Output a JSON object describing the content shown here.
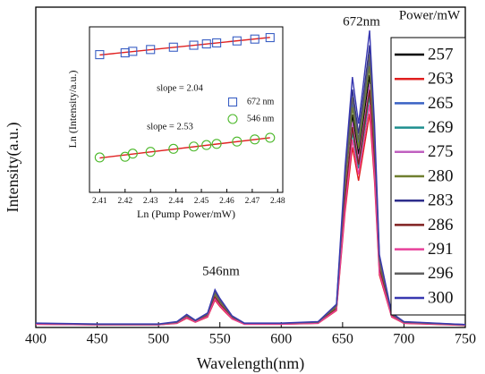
{
  "chart_data": [
    {
      "type": "line",
      "x_label": "Wavelength(nm)",
      "y_label": "Intensity(a.u.)",
      "legend_title": "Power/mW",
      "annotations": [
        "672nm",
        "546nm"
      ],
      "xlim": [
        400,
        750
      ],
      "xticks": [
        400,
        450,
        500,
        550,
        600,
        650,
        700,
        750
      ],
      "ylim": [
        0,
        110
      ],
      "x": [
        400,
        450,
        500,
        515,
        523,
        530,
        540,
        546,
        550,
        555,
        560,
        570,
        600,
        630,
        645,
        652,
        658,
        663,
        667,
        672,
        676,
        680,
        690,
        700,
        750
      ],
      "series": [
        {
          "name": "257",
          "color": "#000000",
          "values": [
            1.3,
            1.0,
            1.0,
            1.7,
            3.8,
            2.1,
            4.3,
            11.1,
            8.5,
            6.0,
            3.4,
            1.3,
            1.3,
            1.7,
            6.8,
            46.8,
            73.1,
            59.5,
            71.4,
            86.7,
            59.5,
            21.3,
            4.3,
            1.7,
            0.9
          ]
        },
        {
          "name": "263",
          "color": "#e02020",
          "values": [
            1.1,
            0.9,
            0.9,
            1.4,
            3.2,
            1.8,
            3.6,
            9.4,
            7.2,
            5.0,
            2.9,
            1.1,
            1.1,
            1.4,
            5.8,
            39.6,
            61.9,
            50.4,
            60.5,
            73.4,
            50.4,
            18.0,
            3.6,
            1.4,
            0.7
          ]
        },
        {
          "name": "265",
          "color": "#3a62c4",
          "values": [
            1.4,
            1.1,
            1.1,
            1.8,
            4.1,
            2.3,
            4.5,
            11.7,
            9.0,
            6.3,
            3.6,
            1.4,
            1.4,
            1.8,
            7.2,
            49.5,
            77.4,
            63.0,
            75.6,
            91.8,
            63.0,
            22.5,
            4.5,
            1.8,
            0.9
          ]
        },
        {
          "name": "269",
          "color": "#1f8f8f",
          "values": [
            1.2,
            0.9,
            0.9,
            1.6,
            3.5,
            2.0,
            3.9,
            10.1,
            7.8,
            5.5,
            3.1,
            1.2,
            1.2,
            1.6,
            6.2,
            42.9,
            67.1,
            54.6,
            65.5,
            79.6,
            54.6,
            19.5,
            3.9,
            1.6,
            0.8
          ]
        },
        {
          "name": "275",
          "color": "#c060c0",
          "values": [
            1.2,
            1.0,
            1.0,
            1.6,
            3.7,
            2.1,
            4.1,
            10.7,
            8.2,
            5.7,
            3.3,
            1.2,
            1.2,
            1.6,
            6.6,
            45.1,
            70.5,
            57.4,
            68.9,
            83.6,
            57.4,
            20.5,
            4.1,
            1.6,
            0.8
          ]
        },
        {
          "name": "280",
          "color": "#6f7f2f",
          "values": [
            1.3,
            1.1,
            1.1,
            1.8,
            4.0,
            2.2,
            4.4,
            11.4,
            8.8,
            6.2,
            3.5,
            1.3,
            1.3,
            1.8,
            7.0,
            48.4,
            75.7,
            61.6,
            73.9,
            89.8,
            61.6,
            22.0,
            4.4,
            1.8,
            0.9
          ]
        },
        {
          "name": "283",
          "color": "#2e2e8c",
          "values": [
            1.4,
            1.1,
            1.1,
            1.9,
            4.3,
            2.4,
            4.8,
            12.4,
            9.5,
            6.7,
            3.8,
            1.4,
            1.4,
            1.9,
            7.6,
            52.3,
            81.7,
            66.5,
            79.8,
            96.9,
            66.5,
            23.8,
            4.8,
            1.9,
            1.0
          ]
        },
        {
          "name": "286",
          "color": "#802020",
          "values": [
            1.2,
            1.0,
            1.0,
            1.6,
            3.6,
            2.0,
            4.0,
            10.4,
            8.0,
            5.6,
            3.2,
            1.2,
            1.2,
            1.6,
            6.4,
            44.0,
            68.8,
            56.0,
            67.2,
            81.6,
            56.0,
            20.0,
            4.0,
            1.6,
            0.8
          ]
        },
        {
          "name": "291",
          "color": "#e8409a",
          "values": [
            1.1,
            0.9,
            0.9,
            1.5,
            3.4,
            1.9,
            3.8,
            9.8,
            7.5,
            5.3,
            3.0,
            1.1,
            1.1,
            1.5,
            6.0,
            41.3,
            64.5,
            52.5,
            63.0,
            76.5,
            52.5,
            18.8,
            3.8,
            1.5,
            0.8
          ]
        },
        {
          "name": "296",
          "color": "#606060",
          "values": [
            1.4,
            1.1,
            1.1,
            1.8,
            4.1,
            2.3,
            4.6,
            12.0,
            9.2,
            6.4,
            3.7,
            1.4,
            1.4,
            1.8,
            7.4,
            50.6,
            79.1,
            64.4,
            77.3,
            93.8,
            64.4,
            23.0,
            4.6,
            1.8,
            0.9
          ]
        },
        {
          "name": "300",
          "color": "#3838b0",
          "values": [
            1.5,
            1.2,
            1.2,
            2,
            4.5,
            2.5,
            5,
            13,
            10,
            7,
            4,
            1.5,
            1.5,
            2,
            8,
            55,
            86,
            70,
            84,
            102,
            70,
            25,
            5,
            2,
            1
          ]
        }
      ]
    },
    {
      "type": "scatter",
      "x_label": "Ln (Pump Power/mW)",
      "y_label": "Ln (Intensity/a.u.)",
      "annotations": [
        "slope = 2.04",
        "slope = 2.53"
      ],
      "xlim": [
        2.406,
        2.482
      ],
      "xticks": [
        2.41,
        2.42,
        2.43,
        2.44,
        2.45,
        2.46,
        2.47,
        2.48
      ],
      "ylim": [
        0,
        10
      ],
      "series": [
        {
          "name": "672 nm",
          "color": "#3a5fc4",
          "marker": "square",
          "x": [
            2.41,
            2.42,
            2.423,
            2.43,
            2.439,
            2.447,
            2.452,
            2.456,
            2.464,
            2.471,
            2.477
          ],
          "values": [
            8.32,
            8.43,
            8.52,
            8.63,
            8.77,
            8.89,
            8.97,
            9.03,
            9.15,
            9.26,
            9.35
          ]
        },
        {
          "name": "546 nm",
          "color": "#4cb82a",
          "marker": "circle",
          "x": [
            2.41,
            2.42,
            2.423,
            2.43,
            2.439,
            2.447,
            2.452,
            2.456,
            2.464,
            2.471,
            2.477
          ],
          "values": [
            2.11,
            2.15,
            2.34,
            2.45,
            2.63,
            2.77,
            2.86,
            2.93,
            3.07,
            3.2,
            3.3
          ]
        }
      ],
      "fits": [
        {
          "color": "#e02020",
          "x": [
            2.41,
            2.477
          ],
          "y": [
            8.3,
            9.36
          ]
        },
        {
          "color": "#e02020",
          "x": [
            2.41,
            2.477
          ],
          "y": [
            2.08,
            3.3
          ]
        }
      ]
    }
  ]
}
